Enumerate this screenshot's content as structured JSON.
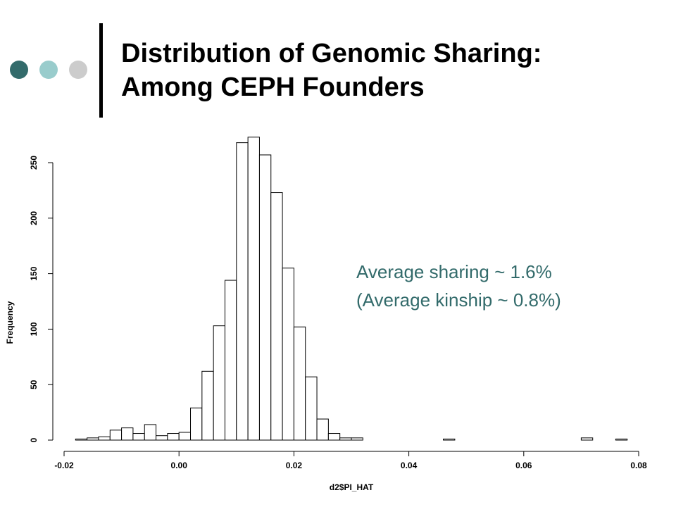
{
  "slide": {
    "title_line1": "Distribution of Genomic Sharing:",
    "title_line2": "Among CEPH Founders",
    "annotation_line1": "Average sharing ~ 1.6%",
    "annotation_line2": "(Average kinship ~ 0.8%)",
    "colors": {
      "dot1": "#336b6b",
      "dot2": "#99cccc",
      "dot3": "#cccccc",
      "annotation": "#336b6b"
    }
  },
  "chart_data": {
    "type": "bar",
    "title": "",
    "xlabel": "d2$PI_HAT",
    "ylabel": "Frequency",
    "xlim": [
      -0.02,
      0.08
    ],
    "ylim": [
      0,
      250
    ],
    "bin_width": 0.002,
    "xticks": [
      -0.02,
      0.0,
      0.02,
      0.04,
      0.06,
      0.08
    ],
    "xtick_labels": [
      "-0.02",
      "0.00",
      "0.02",
      "0.04",
      "0.06",
      "0.08"
    ],
    "yticks": [
      0,
      50,
      100,
      150,
      200,
      250
    ],
    "ytick_labels": [
      "0",
      "50",
      "100",
      "150",
      "200",
      "250"
    ],
    "grid": false,
    "bins": [
      {
        "x0": -0.018,
        "x1": -0.016,
        "value": 1
      },
      {
        "x0": -0.016,
        "x1": -0.014,
        "value": 2
      },
      {
        "x0": -0.014,
        "x1": -0.012,
        "value": 3
      },
      {
        "x0": -0.012,
        "x1": -0.01,
        "value": 9
      },
      {
        "x0": -0.01,
        "x1": -0.008,
        "value": 11
      },
      {
        "x0": -0.008,
        "x1": -0.006,
        "value": 6
      },
      {
        "x0": -0.006,
        "x1": -0.004,
        "value": 14
      },
      {
        "x0": -0.004,
        "x1": -0.002,
        "value": 4
      },
      {
        "x0": -0.002,
        "x1": 0.0,
        "value": 6
      },
      {
        "x0": 0.0,
        "x1": 0.002,
        "value": 7
      },
      {
        "x0": 0.002,
        "x1": 0.004,
        "value": 29
      },
      {
        "x0": 0.004,
        "x1": 0.006,
        "value": 62
      },
      {
        "x0": 0.006,
        "x1": 0.008,
        "value": 103
      },
      {
        "x0": 0.008,
        "x1": 0.01,
        "value": 144
      },
      {
        "x0": 0.01,
        "x1": 0.012,
        "value": 268
      },
      {
        "x0": 0.012,
        "x1": 0.014,
        "value": 273
      },
      {
        "x0": 0.014,
        "x1": 0.016,
        "value": 257
      },
      {
        "x0": 0.016,
        "x1": 0.018,
        "value": 223
      },
      {
        "x0": 0.018,
        "x1": 0.02,
        "value": 155
      },
      {
        "x0": 0.02,
        "x1": 0.022,
        "value": 102
      },
      {
        "x0": 0.022,
        "x1": 0.024,
        "value": 57
      },
      {
        "x0": 0.024,
        "x1": 0.026,
        "value": 19
      },
      {
        "x0": 0.026,
        "x1": 0.028,
        "value": 6
      },
      {
        "x0": 0.028,
        "x1": 0.03,
        "value": 2
      },
      {
        "x0": 0.03,
        "x1": 0.032,
        "value": 2
      },
      {
        "x0": 0.046,
        "x1": 0.048,
        "value": 1
      },
      {
        "x0": 0.07,
        "x1": 0.072,
        "value": 2
      },
      {
        "x0": 0.076,
        "x1": 0.078,
        "value": 1
      }
    ]
  }
}
